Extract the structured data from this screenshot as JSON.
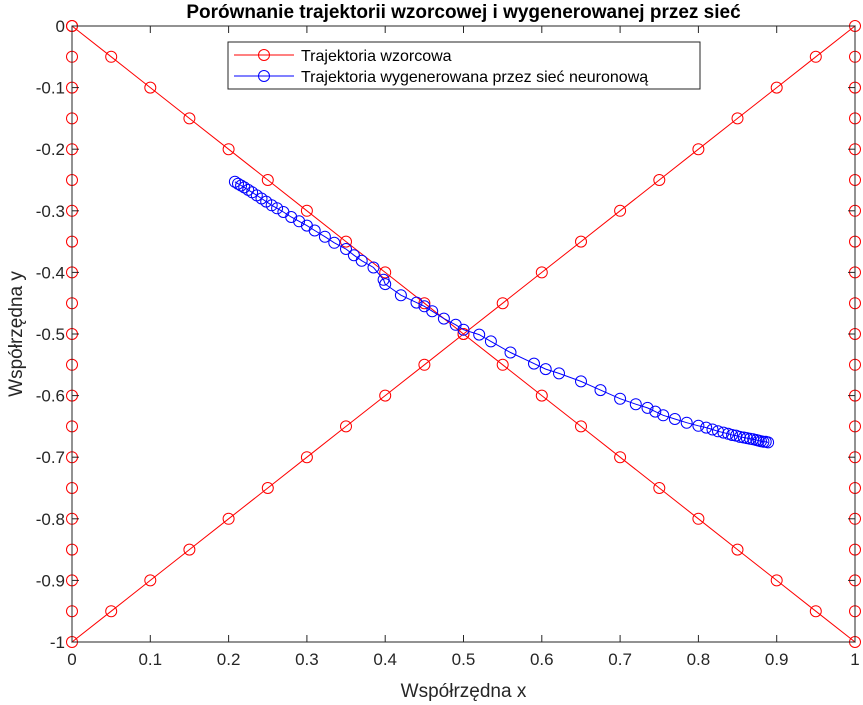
{
  "chart_data": {
    "type": "line",
    "title": "Porównanie trajektorii wzorcowej i wygenerowanej przez sieć",
    "xlabel": "Współrzędna x",
    "ylabel": "Współrzędna y",
    "xlim": [
      0,
      1
    ],
    "ylim": [
      -1,
      0
    ],
    "xticks": [
      0,
      0.1,
      0.2,
      0.3,
      0.4,
      0.5,
      0.6,
      0.7,
      0.8,
      0.9,
      1
    ],
    "xtick_labels": [
      "0",
      "0.1",
      "0.2",
      "0.3",
      "0.4",
      "0.5",
      "0.6",
      "0.7",
      "0.8",
      "0.9",
      "1"
    ],
    "yticks": [
      0,
      -0.1,
      -0.2,
      -0.3,
      -0.4,
      -0.5,
      -0.6,
      -0.7,
      -0.8,
      -0.9,
      -1
    ],
    "ytick_labels": [
      "0",
      "-0.1",
      "-0.2",
      "-0.3",
      "-0.4",
      "-0.5",
      "-0.6",
      "-0.7",
      "-0.8",
      "-0.9",
      "-1"
    ],
    "grid": false,
    "legend_position": "top",
    "series": [
      {
        "name": "Trajektoria wzorcowa",
        "color": "#ff0000",
        "marker": "circle",
        "x": [
          0,
          0.05,
          0.1,
          0.15,
          0.2,
          0.25,
          0.3,
          0.35,
          0.4,
          0.45,
          0.5,
          0.55,
          0.6,
          0.65,
          0.7,
          0.75,
          0.8,
          0.85,
          0.9,
          0.95,
          1,
          1,
          1,
          1,
          1,
          1,
          1,
          1,
          1,
          1,
          1,
          1,
          1,
          1,
          1,
          1,
          1,
          1,
          1,
          1,
          1,
          0.95,
          0.9,
          0.85,
          0.8,
          0.75,
          0.7,
          0.65,
          0.6,
          0.55,
          0.5,
          0.45,
          0.4,
          0.35,
          0.3,
          0.25,
          0.2,
          0.15,
          0.1,
          0.05,
          0,
          0,
          0,
          0,
          0,
          0,
          0,
          0,
          0,
          0,
          0,
          0,
          0,
          0,
          0,
          0,
          0,
          0,
          0,
          0,
          0
        ],
        "y": [
          0,
          -0.05,
          -0.1,
          -0.15,
          -0.2,
          -0.25,
          -0.3,
          -0.35,
          -0.4,
          -0.45,
          -0.5,
          -0.55,
          -0.6,
          -0.65,
          -0.7,
          -0.75,
          -0.8,
          -0.85,
          -0.9,
          -0.95,
          -1,
          -0.95,
          -0.9,
          -0.85,
          -0.8,
          -0.75,
          -0.7,
          -0.65,
          -0.6,
          -0.55,
          -0.5,
          -0.45,
          -0.4,
          -0.35,
          -0.3,
          -0.25,
          -0.2,
          -0.15,
          -0.1,
          -0.05,
          0,
          -0.05,
          -0.1,
          -0.15,
          -0.2,
          -0.25,
          -0.3,
          -0.35,
          -0.4,
          -0.45,
          -0.5,
          -0.55,
          -0.6,
          -0.65,
          -0.7,
          -0.75,
          -0.8,
          -0.85,
          -0.9,
          -0.95,
          -1,
          -0.95,
          -0.9,
          -0.85,
          -0.8,
          -0.75,
          -0.7,
          -0.65,
          -0.6,
          -0.55,
          -0.5,
          -0.45,
          -0.4,
          -0.35,
          -0.3,
          -0.25,
          -0.2,
          -0.15,
          -0.1,
          -0.05,
          0
        ]
      },
      {
        "name": "Trajektoria wygenerowana przez sieć neuronową",
        "color": "#0000ff",
        "marker": "circle",
        "x": [
          0.208,
          0.212,
          0.216,
          0.22,
          0.225,
          0.23,
          0.236,
          0.242,
          0.248,
          0.255,
          0.262,
          0.27,
          0.28,
          0.29,
          0.3,
          0.31,
          0.323,
          0.335,
          0.35,
          0.36,
          0.37,
          0.385,
          0.398,
          0.4,
          0.42,
          0.44,
          0.45,
          0.46,
          0.475,
          0.49,
          0.5,
          0.52,
          0.535,
          0.56,
          0.59,
          0.605,
          0.622,
          0.65,
          0.675,
          0.7,
          0.72,
          0.735,
          0.745,
          0.755,
          0.77,
          0.785,
          0.8,
          0.81,
          0.818,
          0.825,
          0.832,
          0.838,
          0.843,
          0.848,
          0.853,
          0.858,
          0.862,
          0.866,
          0.87,
          0.874,
          0.877,
          0.88,
          0.883,
          0.886,
          0.889
        ],
        "y": [
          -0.253,
          -0.256,
          -0.259,
          -0.262,
          -0.266,
          -0.27,
          -0.275,
          -0.28,
          -0.285,
          -0.291,
          -0.296,
          -0.302,
          -0.31,
          -0.317,
          -0.324,
          -0.332,
          -0.342,
          -0.352,
          -0.362,
          -0.372,
          -0.381,
          -0.392,
          -0.412,
          -0.419,
          -0.437,
          -0.449,
          -0.455,
          -0.463,
          -0.475,
          -0.485,
          -0.493,
          -0.501,
          -0.512,
          -0.53,
          -0.548,
          -0.557,
          -0.564,
          -0.577,
          -0.591,
          -0.605,
          -0.614,
          -0.62,
          -0.626,
          -0.632,
          -0.638,
          -0.644,
          -0.649,
          -0.652,
          -0.655,
          -0.658,
          -0.66,
          -0.662,
          -0.664,
          -0.665,
          -0.667,
          -0.668,
          -0.669,
          -0.67,
          -0.671,
          -0.672,
          -0.673,
          -0.674,
          -0.675,
          -0.675,
          -0.676
        ]
      }
    ]
  }
}
